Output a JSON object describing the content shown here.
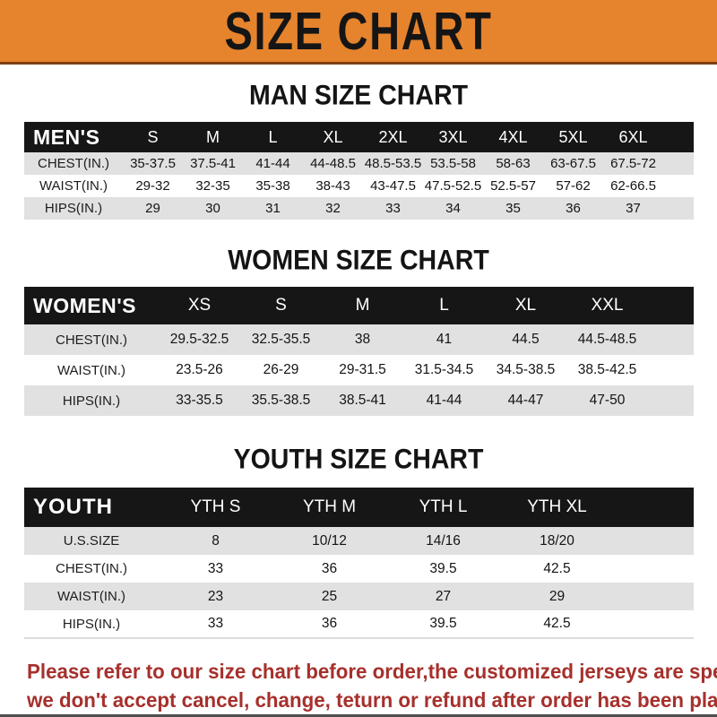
{
  "banner": {
    "title": "SIZE CHART",
    "bg_color": "#E6832D",
    "border_color": "#7E4012"
  },
  "sections": [
    {
      "heading": "MAN SIZE CHART",
      "header_label": "MEN'S",
      "columns": [
        "S",
        "M",
        "L",
        "XL",
        "2XL",
        "3XL",
        "4XL",
        "5XL",
        "6XL"
      ],
      "rows": [
        {
          "label": "CHEST(IN.)",
          "values": [
            "35-37.5",
            "37.5-41",
            "41-44",
            "44-48.5",
            "48.5-53.5",
            "53.5-58",
            "58-63",
            "63-67.5",
            "67.5-72"
          ]
        },
        {
          "label": "WAIST(IN.)",
          "values": [
            "29-32",
            "32-35",
            "35-38",
            "38-43",
            "43-47.5",
            "47.5-52.5",
            "52.5-57",
            "57-62",
            "62-66.5"
          ]
        },
        {
          "label": "HIPS(IN.)",
          "values": [
            "29",
            "30",
            "31",
            "32",
            "33",
            "34",
            "35",
            "36",
            "37"
          ]
        }
      ]
    },
    {
      "heading": "WOMEN SIZE CHART",
      "header_label": "WOMEN'S",
      "columns": [
        "XS",
        "S",
        "M",
        "L",
        "XL",
        "XXL"
      ],
      "rows": [
        {
          "label": "CHEST(IN.)",
          "values": [
            "29.5-32.5",
            "32.5-35.5",
            "38",
            "41",
            "44.5",
            "44.5-48.5"
          ]
        },
        {
          "label": "WAIST(IN.)",
          "values": [
            "23.5-26",
            "26-29",
            "29-31.5",
            "31.5-34.5",
            "34.5-38.5",
            "38.5-42.5"
          ]
        },
        {
          "label": "HIPS(IN.)",
          "values": [
            "33-35.5",
            "35.5-38.5",
            "38.5-41",
            "41-44",
            "44-47",
            "47-50"
          ]
        }
      ]
    },
    {
      "heading": "YOUTH SIZE CHART",
      "header_label": "YOUTH",
      "columns": [
        "YTH S",
        "YTH M",
        "YTH L",
        "YTH XL"
      ],
      "rows": [
        {
          "label": "U.S.SIZE",
          "values": [
            "8",
            "10/12",
            "14/16",
            "18/20"
          ]
        },
        {
          "label": "CHEST(IN.)",
          "values": [
            "33",
            "36",
            "39.5",
            "42.5"
          ]
        },
        {
          "label": "WAIST(IN.)",
          "values": [
            "23",
            "25",
            "27",
            "29"
          ]
        },
        {
          "label": "HIPS(IN.)",
          "values": [
            "33",
            "36",
            "39.5",
            "42.5"
          ]
        }
      ]
    }
  ],
  "table_style": {
    "header_bg": "#161616",
    "header_text": "#FFFFFF",
    "stripe_gray": "#E1E1E1"
  },
  "disclaimer": {
    "line1": "Please refer to our size chart before order,the customized jerseys are special products,",
    "line2": "we don't accept cancel, change, teturn or refund after order has been placed!",
    "color": "#A6302C"
  }
}
